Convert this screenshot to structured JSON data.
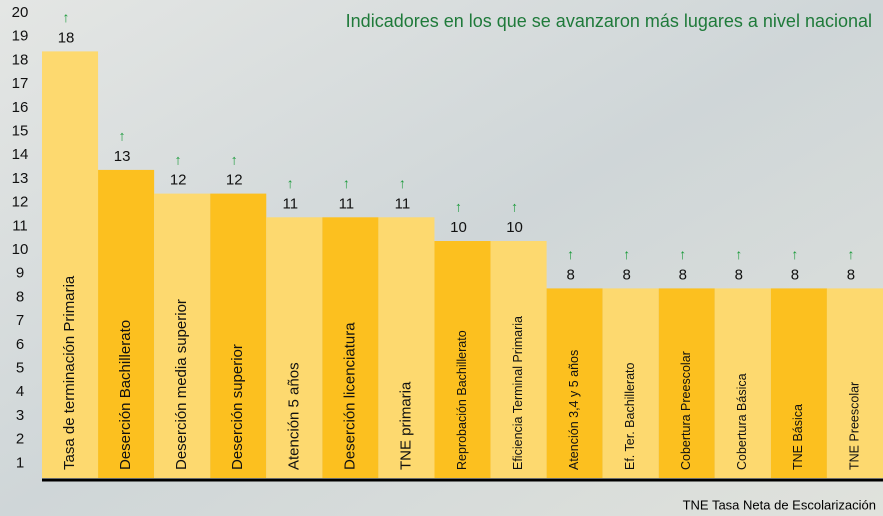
{
  "chart_data": {
    "type": "bar",
    "title": "Indicadores en los que se avanzaron más lugares a nivel nacional",
    "note": "TNE Tasa Neta de Escolarización",
    "marker": "↑",
    "categories": [
      "Tasa de terminación  Primaria",
      "Deserción Bachillerato",
      "Deserción media superior",
      "Deserción superior",
      "Atención 5 años",
      "Deserción licenciatura",
      "TNE primaria",
      "Reprobación Bachillerato",
      "Eficiencia Terminal Primaria",
      "Atención 3,4 y 5 años",
      "Ef. Ter. Bachillerato",
      "Cobertura Preescolar",
      "Cobertura Básica",
      "TNE Básica",
      "TNE Preescolar"
    ],
    "values": [
      18,
      13,
      12,
      12,
      11,
      11,
      11,
      10,
      10,
      8,
      8,
      8,
      8,
      8,
      8
    ],
    "colors": [
      "#fdd96f",
      "#fcc01f"
    ],
    "ylim": [
      0,
      20
    ],
    "yticks": [
      1,
      2,
      3,
      4,
      5,
      6,
      7,
      8,
      9,
      10,
      11,
      12,
      13,
      14,
      15,
      16,
      17,
      18,
      19,
      20
    ]
  }
}
